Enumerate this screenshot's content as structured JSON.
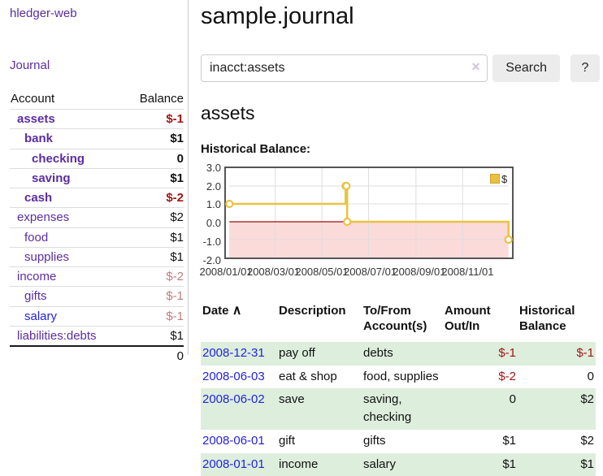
{
  "sidebar": {
    "app_title": "hledger-web",
    "nav_journal": "Journal",
    "headers": {
      "account": "Account",
      "balance": "Balance"
    },
    "accounts": [
      {
        "name": "assets",
        "balance": "$-1"
      },
      {
        "name": "bank",
        "balance": "$1"
      },
      {
        "name": "checking",
        "balance": "0"
      },
      {
        "name": "saving",
        "balance": "$1"
      },
      {
        "name": "cash",
        "balance": "$-2"
      },
      {
        "name": "expenses",
        "balance": "$2"
      },
      {
        "name": "food",
        "balance": "$1"
      },
      {
        "name": "supplies",
        "balance": "$1"
      },
      {
        "name": "income",
        "balance": "$-2"
      },
      {
        "name": "gifts",
        "balance": "$-1"
      },
      {
        "name": "salary",
        "balance": "$-1"
      },
      {
        "name": "liabilities:debts",
        "balance": "$1"
      }
    ],
    "total": "0"
  },
  "main": {
    "title": "sample.journal",
    "search": {
      "value": "inacct:assets",
      "clear_icon": "✕",
      "button_label": "Search",
      "help_label": "?"
    },
    "section_title": "assets",
    "chart_label": "Historical Balance:",
    "register": {
      "headers": {
        "date": "Date",
        "sort_icon": "∧",
        "description": "Description",
        "tofrom": "To/From Account(s)",
        "amount": "Amount Out/In",
        "balance": "Historical Balance"
      },
      "rows": [
        {
          "date": "2008-12-31",
          "description": "pay off",
          "accounts": "debts",
          "amount": "$-1",
          "balance": "$-1"
        },
        {
          "date": "2008-06-03",
          "description": "eat & shop",
          "accounts": "food, supplies",
          "amount": "$-2",
          "balance": "0"
        },
        {
          "date": "2008-06-02",
          "description": "save",
          "accounts": "saving, checking",
          "amount": "0",
          "balance": "$2"
        },
        {
          "date": "2008-06-01",
          "description": "gift",
          "accounts": "gifts",
          "amount": "$1",
          "balance": "$2"
        },
        {
          "date": "2008-01-01",
          "description": "income",
          "accounts": "salary",
          "amount": "$1",
          "balance": "$1"
        }
      ]
    }
  },
  "chart_data": {
    "type": "line",
    "title": "Historical Balance",
    "step": true,
    "series": [
      {
        "name": "$",
        "color": "#e8c33f",
        "points": [
          {
            "date": "2008-01-01",
            "day": 0,
            "value": 1
          },
          {
            "date": "2008-06-01",
            "day": 152,
            "value": 2
          },
          {
            "date": "2008-06-02",
            "day": 153,
            "value": 2
          },
          {
            "date": "2008-06-03",
            "day": 154,
            "value": 0
          },
          {
            "date": "2008-12-31",
            "day": 365,
            "value": -1
          }
        ]
      }
    ],
    "x_ticks": [
      {
        "day": 0,
        "label": "2008/01/01"
      },
      {
        "day": 60,
        "label": "2008/03/01"
      },
      {
        "day": 121,
        "label": "2008/05/01"
      },
      {
        "day": 182,
        "label": "2008/07/01"
      },
      {
        "day": 244,
        "label": "2008/09/01"
      },
      {
        "day": 305,
        "label": "2008/11/01"
      }
    ],
    "y_ticks": [
      3.0,
      2.0,
      1.0,
      0.0,
      -1.0,
      -2.0
    ],
    "y_tick_labels": [
      "3.0",
      "2.0",
      "1.0",
      "0.0",
      "-1.0",
      "-2.0"
    ],
    "xlim_days": [
      0,
      365
    ],
    "ylim": [
      -2,
      3
    ],
    "legend": {
      "label": "$",
      "position": "top-right"
    },
    "negative_region_fill": "#fbdada",
    "zero_line_color": "#991111",
    "grid": true
  },
  "colors": {
    "link_purple": "#5c2da0",
    "link_blue": "#2323dd",
    "negative_strong": "#a01616",
    "negative_muted": "#bd7d7d",
    "row_green": "#ddeedd",
    "series_yellow": "#e8c33f",
    "button_gray": "#ececec"
  }
}
